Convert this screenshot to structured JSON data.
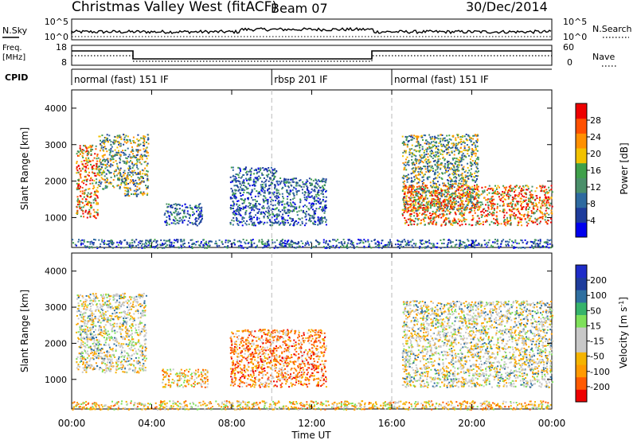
{
  "header": {
    "title": "Christmas Valley West (fitACF)",
    "beam": "Beam 07",
    "date": "30/Dec/2014"
  },
  "nsky_panel": {
    "left_label_top": "N.Sky",
    "left_tick_top": "10^5",
    "left_tick_bottom": "10^0",
    "right_tick_top": "10^5",
    "right_tick_bottom": "10^0",
    "right_label": "N.Search"
  },
  "freq_panel": {
    "left_label_line1": "Freq.",
    "left_label_line2": "[MHz]",
    "left_tick_top": "18",
    "left_tick_bottom": "8",
    "right_tick_top": "60",
    "right_tick_bottom": "0",
    "right_label": "Nave"
  },
  "cpid_panel": {
    "label": "CPID",
    "segments": [
      {
        "name": "normal (fast) 151 IF",
        "start_hour": 0,
        "end_hour": 10.0
      },
      {
        "name": "rbsp 201 IF",
        "start_hour": 10.0,
        "end_hour": 16.0
      },
      {
        "name": "normal (fast) 151 IF",
        "start_hour": 16.0,
        "end_hour": 24.0
      }
    ]
  },
  "colors": {
    "power_scale": [
      "#0000ee",
      "#1e3c9c",
      "#2e6aa0",
      "#4a8f6a",
      "#3fa04a",
      "#f2c200",
      "#ff9000",
      "#ff5000",
      "#ee0000"
    ],
    "velocity_scale": [
      "#ee0000",
      "#ff5a00",
      "#ff9a00",
      "#f5b400",
      "#c8c8c8",
      "#c8c8c8",
      "#7ee05a",
      "#36b36b",
      "#2f6fa0",
      "#1e3c9c",
      "#1e2cc8"
    ]
  },
  "chart_data": [
    {
      "type": "heatmap",
      "ylabel": "Slant Range [km]",
      "colorbar_label": "Power [dB]",
      "colorbar_ticks": [
        "4",
        "8",
        "12",
        "16",
        "20",
        "24",
        "28"
      ],
      "y_ticks": [
        "1000",
        "2000",
        "3000",
        "4000"
      ],
      "ylim": [
        180,
        4500
      ],
      "xlim": [
        0,
        24
      ],
      "scatter_regions": [
        {
          "t0": 0.2,
          "t1": 1.3,
          "r0": 1000,
          "r1": 3000,
          "level": "high"
        },
        {
          "t0": 1.3,
          "t1": 2.6,
          "r0": 1800,
          "r1": 3300,
          "level": "mid"
        },
        {
          "t0": 2.6,
          "t1": 3.8,
          "r0": 1600,
          "r1": 3300,
          "level": "mid"
        },
        {
          "t0": 4.6,
          "t1": 6.5,
          "r0": 800,
          "r1": 1400,
          "level": "low"
        },
        {
          "t0": 7.9,
          "t1": 10.2,
          "r0": 800,
          "r1": 2400,
          "level": "low"
        },
        {
          "t0": 10.2,
          "t1": 12.7,
          "r0": 800,
          "r1": 2100,
          "level": "low"
        },
        {
          "t0": 16.5,
          "t1": 20.3,
          "r0": 1200,
          "r1": 3300,
          "level": "mid"
        },
        {
          "t0": 16.5,
          "t1": 24.0,
          "r0": 800,
          "r1": 1900,
          "level": "high"
        },
        {
          "t0": 0.0,
          "t1": 24.0,
          "r0": 180,
          "r1": 420,
          "level": "low"
        }
      ]
    },
    {
      "type": "heatmap",
      "ylabel": "Slant Range [km]",
      "colorbar_label": "Velocity [m s^-1]",
      "colorbar_ticks": [
        "-200",
        "-100",
        "-50",
        "-15",
        "15",
        "50",
        "100",
        "200"
      ],
      "y_ticks": [
        "1000",
        "2000",
        "3000",
        "4000"
      ],
      "ylim": [
        180,
        4500
      ],
      "xlim": [
        0,
        24
      ],
      "xlabel": "Time UT",
      "x_ticks": [
        "00:00",
        "04:00",
        "08:00",
        "12:00",
        "16:00",
        "20:00",
        "00:00"
      ],
      "scatter_regions": [
        {
          "t0": 0.2,
          "t1": 3.7,
          "r0": 1200,
          "r1": 3400,
          "level": "neutral"
        },
        {
          "t0": 4.5,
          "t1": 6.8,
          "r0": 800,
          "r1": 1300,
          "level": "neg"
        },
        {
          "t0": 7.9,
          "t1": 12.7,
          "r0": 800,
          "r1": 2400,
          "level": "strongneg"
        },
        {
          "t0": 16.5,
          "t1": 24.0,
          "r0": 800,
          "r1": 3200,
          "level": "neutral"
        },
        {
          "t0": 0.0,
          "t1": 24.0,
          "r0": 180,
          "r1": 420,
          "level": "neg"
        }
      ]
    }
  ]
}
